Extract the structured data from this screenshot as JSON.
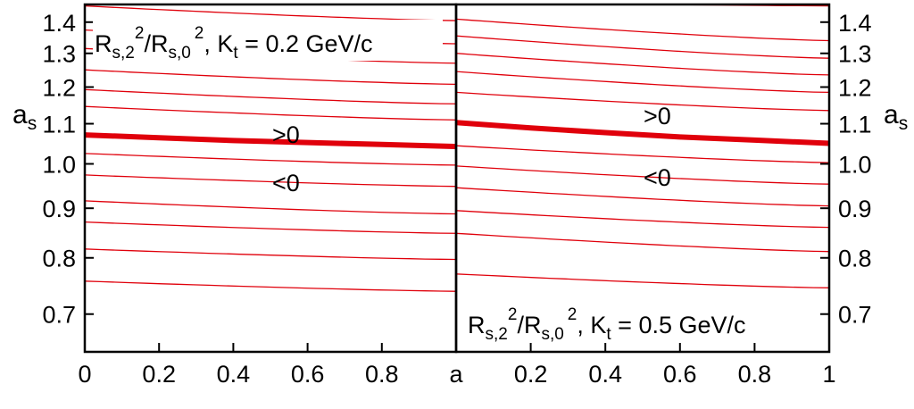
{
  "chart_data": {
    "type": "line",
    "grid": false,
    "legend": "none",
    "colors": {
      "contour": "#e0000b",
      "axis": "#000000",
      "zero_line": "#e0000b"
    },
    "x_ticks": [
      "0",
      "0.2",
      "0.4",
      "0.6",
      "0.8",
      "a",
      "0.2",
      "0.4",
      "0.6",
      "0.8",
      "1"
    ],
    "y_ticks": [
      "0.7",
      "0.8",
      "0.9",
      "1.0",
      "1.1",
      "1.2",
      "1.3",
      "1.4"
    ],
    "panels": [
      {
        "title": {
          "base": "R",
          "sub1": "s,2",
          "sup1": "2",
          "mid": "/R",
          "sub2": "s,0",
          "sup2": "2",
          "tail": ", K",
          "sub3": "t",
          "end": " = 0.2 GeV/c"
        },
        "ylabel": {
          "base": "a",
          "sub": "s"
        },
        "xlim": [
          0,
          1
        ],
        "ylim": [
          0.64,
          1.46
        ],
        "annotations": [
          ">0",
          "<0"
        ],
        "zero_contour": {
          "x": [
            0,
            0.2,
            0.4,
            0.6,
            0.8,
            1.0
          ],
          "y": [
            1.071,
            1.064,
            1.057,
            1.052,
            1.047,
            1.042
          ]
        },
        "contours": [
          {
            "start": 1.455,
            "end": 1.405
          },
          {
            "start": 1.374,
            "end": 1.33
          },
          {
            "start": 1.315,
            "end": 1.27
          },
          {
            "start": 1.25,
            "end": 1.208
          },
          {
            "start": 1.193,
            "end": 1.153
          },
          {
            "start": 1.146,
            "end": 1.11
          },
          {
            "start": 1.025,
            "end": 0.997
          },
          {
            "start": 0.974,
            "end": 0.948
          },
          {
            "start": 0.916,
            "end": 0.888
          },
          {
            "start": 0.871,
            "end": 0.848
          },
          {
            "start": 0.817,
            "end": 0.797
          },
          {
            "start": 0.757,
            "end": 0.739
          }
        ]
      },
      {
        "title": {
          "base": "R",
          "sub1": "s,2",
          "sup1": "2",
          "mid": "/R",
          "sub2": "s,0",
          "sup2": "2",
          "tail": ", K",
          "sub3": "t",
          "end": " = 0.5 GeV/c"
        },
        "ylabel": {
          "base": "a",
          "sub": "s"
        },
        "xlim": [
          0,
          1
        ],
        "ylim": [
          0.64,
          1.46
        ],
        "annotations": [
          ">0",
          "<0"
        ],
        "zero_contour": {
          "x": [
            0,
            0.2,
            0.4,
            0.6,
            0.8,
            1.0
          ],
          "y": [
            1.103,
            1.089,
            1.077,
            1.066,
            1.058,
            1.05
          ]
        },
        "contours": [
          {
            "start": 1.47,
            "end": 1.455
          },
          {
            "start": 1.41,
            "end": 1.34
          },
          {
            "start": 1.355,
            "end": 1.285
          },
          {
            "start": 1.3,
            "end": 1.235
          },
          {
            "start": 1.245,
            "end": 1.185
          },
          {
            "start": 1.185,
            "end": 1.135
          },
          {
            "start": 1.044,
            "end": 1.003
          },
          {
            "start": 0.995,
            "end": 0.953
          },
          {
            "start": 0.945,
            "end": 0.905
          },
          {
            "start": 0.895,
            "end": 0.86
          },
          {
            "start": 0.848,
            "end": 0.812
          },
          {
            "start": 0.77,
            "end": 0.745
          }
        ]
      }
    ]
  }
}
